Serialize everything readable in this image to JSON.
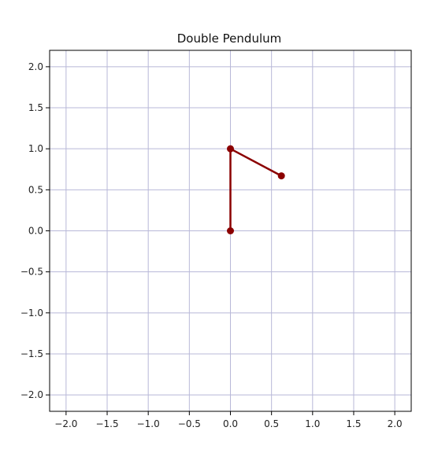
{
  "chart_data": {
    "type": "line",
    "title": "Double Pendulum",
    "xlabel": "",
    "ylabel": "",
    "xlim": [
      -2.2,
      2.2
    ],
    "ylim": [
      -2.2,
      2.2
    ],
    "xticks": [
      -2.0,
      -1.5,
      -1.0,
      -0.5,
      0.0,
      0.5,
      1.0,
      1.5,
      2.0
    ],
    "yticks": [
      -2.0,
      -1.5,
      -1.0,
      -0.5,
      0.0,
      0.5,
      1.0,
      1.5,
      2.0
    ],
    "xtick_labels": [
      "−2.0",
      "−1.5",
      "−1.0",
      "−0.5",
      "0.0",
      "0.5",
      "1.0",
      "1.5",
      "2.0"
    ],
    "ytick_labels": [
      "−2.0",
      "−1.5",
      "−1.0",
      "−0.5",
      "0.0",
      "0.5",
      "1.0",
      "1.5",
      "2.0"
    ],
    "grid": true,
    "grid_color": "#b8b8d8",
    "line_color": "#8b0000",
    "series": [
      {
        "x": [
          0.0,
          0.0,
          0.62
        ],
        "y": [
          0.0,
          1.0,
          0.67
        ]
      }
    ]
  }
}
